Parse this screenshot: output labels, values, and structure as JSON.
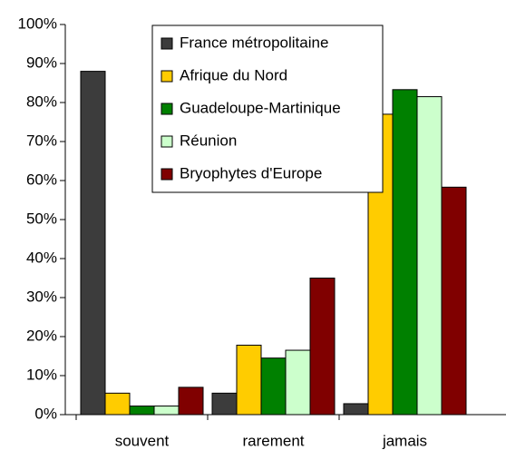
{
  "chart_data": {
    "type": "bar",
    "categories": [
      "souvent",
      "rarement",
      "jamais"
    ],
    "series": [
      {
        "name": "France métropolitaine",
        "color": "#3c3c3c",
        "values": [
          88,
          5.5,
          2.8
        ]
      },
      {
        "name": "Afrique du Nord",
        "color": "#ffcc00",
        "values": [
          5.5,
          17.8,
          77
        ]
      },
      {
        "name": "Guadeloupe-Martinique",
        "color": "#008000",
        "values": [
          2.2,
          14.5,
          83.3
        ]
      },
      {
        "name": "Réunion",
        "color": "#ccffcc",
        "values": [
          2.2,
          16.5,
          81.5
        ]
      },
      {
        "name": "Bryophytes d'Europe",
        "color": "#800000",
        "values": [
          7,
          35,
          58.3
        ]
      }
    ],
    "ylim": [
      0,
      100
    ],
    "yticks": [
      {
        "value": 0,
        "label": "0%"
      },
      {
        "value": 10,
        "label": "10%"
      },
      {
        "value": 20,
        "label": "20%"
      },
      {
        "value": 30,
        "label": "30%"
      },
      {
        "value": 40,
        "label": "40%"
      },
      {
        "value": 50,
        "label": "50%"
      },
      {
        "value": 60,
        "label": "60%"
      },
      {
        "value": 70,
        "label": "70%"
      },
      {
        "value": 80,
        "label": "80%"
      },
      {
        "value": 90,
        "label": "90%"
      },
      {
        "value": 100,
        "label": "100%"
      }
    ],
    "legend": "top"
  }
}
